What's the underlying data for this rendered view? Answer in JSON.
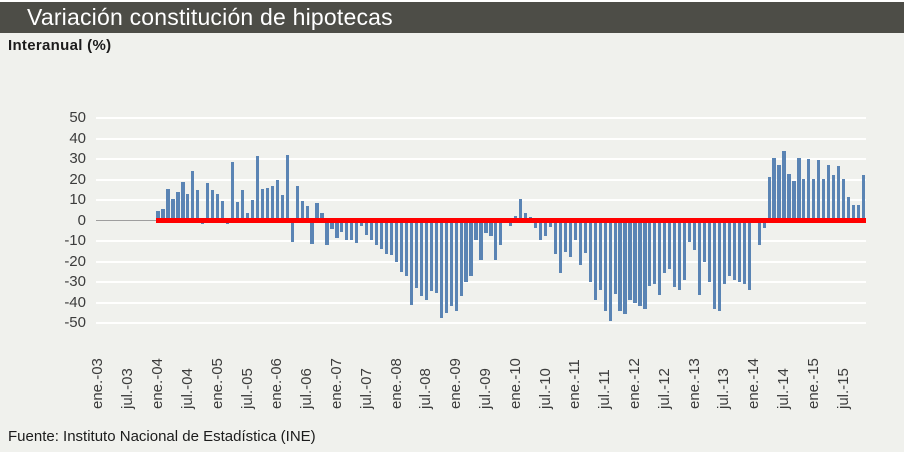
{
  "header": {
    "title": "Variación constitución de hipotecas",
    "subtitle": "Interanual  (%)"
  },
  "footer": {
    "source": "Fuente: Instituto Nacional de Estadística (INE)"
  },
  "colors": {
    "background": "#f0f1ed",
    "title_bar": "#4d4d47",
    "title_text": "#ffffff",
    "bar": "#5a84b4",
    "zero_line": "#ff0000",
    "axis_gray": "#9e9e9e",
    "gridline": "#ffffff",
    "axis_text": "#3c3c3c"
  },
  "chart_data": {
    "type": "bar",
    "title": "Variación constitución de hipotecas",
    "subtitle": "Interanual (%)",
    "xlabel": "",
    "ylabel": "",
    "ylim": [
      -50,
      50
    ],
    "ytick_step": 10,
    "yticks": [
      50,
      40,
      30,
      20,
      10,
      0,
      -10,
      -20,
      -30,
      -40,
      -50
    ],
    "grid": true,
    "legend": false,
    "bar_color": "#5a84b4",
    "zero_line_color": "#ff0000",
    "x_tick_labels": [
      "ene.-03",
      "jul.-03",
      "ene.-04",
      "jul.-04",
      "ene.-05",
      "jul.-05",
      "ene.-06",
      "jul.-06",
      "ene.-07",
      "jul.-07",
      "ene.-08",
      "jul.-08",
      "ene.-09",
      "jul.-09",
      "ene.-10",
      "jul.-10",
      "ene.-11",
      "jul.-11",
      "ene.-12",
      "jul.-12",
      "ene.-13",
      "jul.-13",
      "ene.-14",
      "jul.-14",
      "ene.-15",
      "jul.-15"
    ],
    "x_tick_every": 6,
    "note": "monthly series; slots start ene.-03, data starts ene.-04 (first 12 slots empty)",
    "values": [
      null,
      null,
      null,
      null,
      null,
      null,
      null,
      null,
      null,
      null,
      null,
      null,
      4.4,
      5.7,
      15.6,
      10.5,
      13.8,
      18.9,
      12.8,
      24.3,
      15,
      -1.7,
      18.4,
      15,
      13,
      9.3,
      -1.9,
      28.3,
      8.8,
      15,
      3.5,
      9.8,
      31.5,
      15.4,
      15.9,
      17,
      19.7,
      12.6,
      31.9,
      -10.5,
      17,
      9.3,
      7.2,
      -11.3,
      8.5,
      3.5,
      -12.1,
      -4,
      -8.5,
      -5.5,
      -9.6,
      -9.6,
      -11,
      -2.7,
      -7.2,
      -9.6,
      -12,
      -13.7,
      -16.2,
      -17,
      -20.3,
      -25.3,
      -27,
      -41,
      -32.7,
      -36.8,
      -39,
      -34.3,
      -35.2,
      -47.5,
      -45,
      -41.8,
      -44.2,
      -37,
      -30,
      -27,
      -9.6,
      -19.5,
      -6,
      -7.7,
      -19.5,
      -12,
      1,
      -2.5,
      2.2,
      10.5,
      3.5,
      1.9,
      -3.5,
      -9.3,
      -7.5,
      -3,
      -16.2,
      -25.6,
      -15.4,
      -17.9,
      -9.3,
      -21.7,
      -16,
      -30,
      -39,
      -34,
      -44,
      -49,
      -36,
      -44,
      -45.8,
      -39,
      -40,
      -41.7,
      -43.4,
      -31.9,
      -31,
      -36.5,
      -25.8,
      -23.6,
      -32.4,
      -34,
      -29,
      -10.5,
      -14.6,
      -36.5,
      -20.3,
      -30.2,
      -43.4,
      -44.2,
      -31,
      -27,
      -29,
      -30.2,
      -31,
      -34,
      1.4,
      -12.1,
      -3.5,
      21.3,
      30.7,
      27.3,
      34,
      22.7,
      19.2,
      30.4,
      20.3,
      29.9,
      20.3,
      29.3,
      20.3,
      27,
      22,
      26.5,
      20.3,
      11.5,
      7.5,
      7.5,
      22
    ]
  }
}
